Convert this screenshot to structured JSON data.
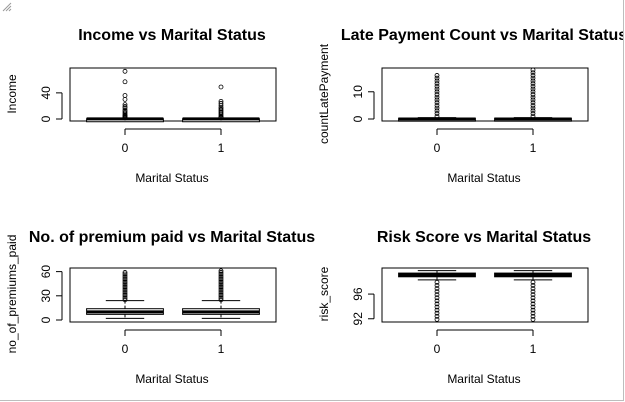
{
  "chart_data": [
    {
      "type": "boxplot",
      "title": "Income vs  Marital Status",
      "xlabel": "Marital Status",
      "ylabel": "Income",
      "categories": [
        "0",
        "1"
      ],
      "yticks": [
        0,
        40
      ],
      "ylim": [
        0,
        75
      ],
      "boxes": [
        {
          "category": "0",
          "min": 0,
          "q1": 0,
          "median": 0.2,
          "q3": 0.4,
          "max": 1,
          "outliers": [
            1.5,
            2,
            3,
            4,
            5,
            6,
            8,
            10,
            12,
            14,
            17,
            19,
            22,
            30,
            36,
            57,
            73
          ]
        },
        {
          "category": "1",
          "min": 0,
          "q1": 0,
          "median": 0.2,
          "q3": 0.4,
          "max": 1,
          "outliers": [
            1.5,
            2,
            3,
            4,
            6,
            8,
            10,
            12,
            14,
            16,
            18,
            21,
            24,
            27,
            49
          ]
        }
      ]
    },
    {
      "type": "boxplot",
      "title": "Late Payment Count vs  Marital Status",
      "xlabel": "Marital Status",
      "ylabel": "countLatePayment",
      "categories": [
        "0",
        "1"
      ],
      "yticks": [
        0,
        10
      ],
      "ylim": [
        0,
        18
      ],
      "boxes": [
        {
          "category": "0",
          "min": 0,
          "q1": 0,
          "median": 0,
          "q3": 0.3,
          "max": 0.5,
          "outliers": [
            1,
            2,
            3,
            4,
            5,
            6,
            7,
            8,
            9,
            10,
            11,
            12,
            13,
            14,
            15,
            16
          ]
        },
        {
          "category": "1",
          "min": 0,
          "q1": 0,
          "median": 0,
          "q3": 0.3,
          "max": 0.5,
          "outliers": [
            1,
            2,
            3,
            4,
            5,
            6,
            7,
            8,
            9,
            10,
            11,
            12,
            13,
            14,
            15,
            16,
            17,
            18
          ]
        }
      ]
    },
    {
      "type": "boxplot",
      "title": "No. of premium paid vs Marital Status",
      "xlabel": "Marital Status",
      "ylabel": "no_of_premiums_paid",
      "categories": [
        "0",
        "1"
      ],
      "yticks": [
        0,
        30,
        60
      ],
      "ylim": [
        0,
        62
      ],
      "boxes": [
        {
          "category": "0",
          "min": 2,
          "q1": 7,
          "median": 10,
          "q3": 14,
          "max": 24,
          "outliers": [
            25,
            27,
            29,
            31,
            33,
            35,
            37,
            39,
            41,
            43,
            45,
            47,
            49,
            51,
            53,
            55,
            57,
            59
          ]
        },
        {
          "category": "1",
          "min": 2,
          "q1": 7,
          "median": 10,
          "q3": 14,
          "max": 24,
          "outliers": [
            25,
            27,
            29,
            31,
            33,
            35,
            37,
            39,
            41,
            43,
            45,
            47,
            49,
            51,
            53,
            55,
            57,
            59,
            61
          ]
        }
      ]
    },
    {
      "type": "boxplot",
      "title": "Risk Score vs Marital Status",
      "xlabel": "Marital Status",
      "ylabel": "risk_score",
      "categories": [
        "0",
        "1"
      ],
      "yticks": [
        92,
        96
      ],
      "ylim": [
        91.8,
        99.9
      ],
      "boxes": [
        {
          "category": "0",
          "min": 98.3,
          "q1": 98.8,
          "median": 99.1,
          "q3": 99.4,
          "max": 99.8,
          "outliers": [
            91.9,
            92.4,
            92.9,
            93.4,
            93.9,
            94.4,
            94.9,
            95.4,
            95.9,
            96.4,
            96.9,
            97.4,
            97.9
          ]
        },
        {
          "category": "1",
          "min": 98.3,
          "q1": 98.8,
          "median": 99.1,
          "q3": 99.4,
          "max": 99.8,
          "outliers": [
            91.9,
            92.4,
            92.9,
            93.4,
            93.9,
            94.4,
            94.9,
            95.4,
            95.9,
            96.4,
            96.9,
            97.4,
            97.9
          ]
        }
      ]
    }
  ]
}
